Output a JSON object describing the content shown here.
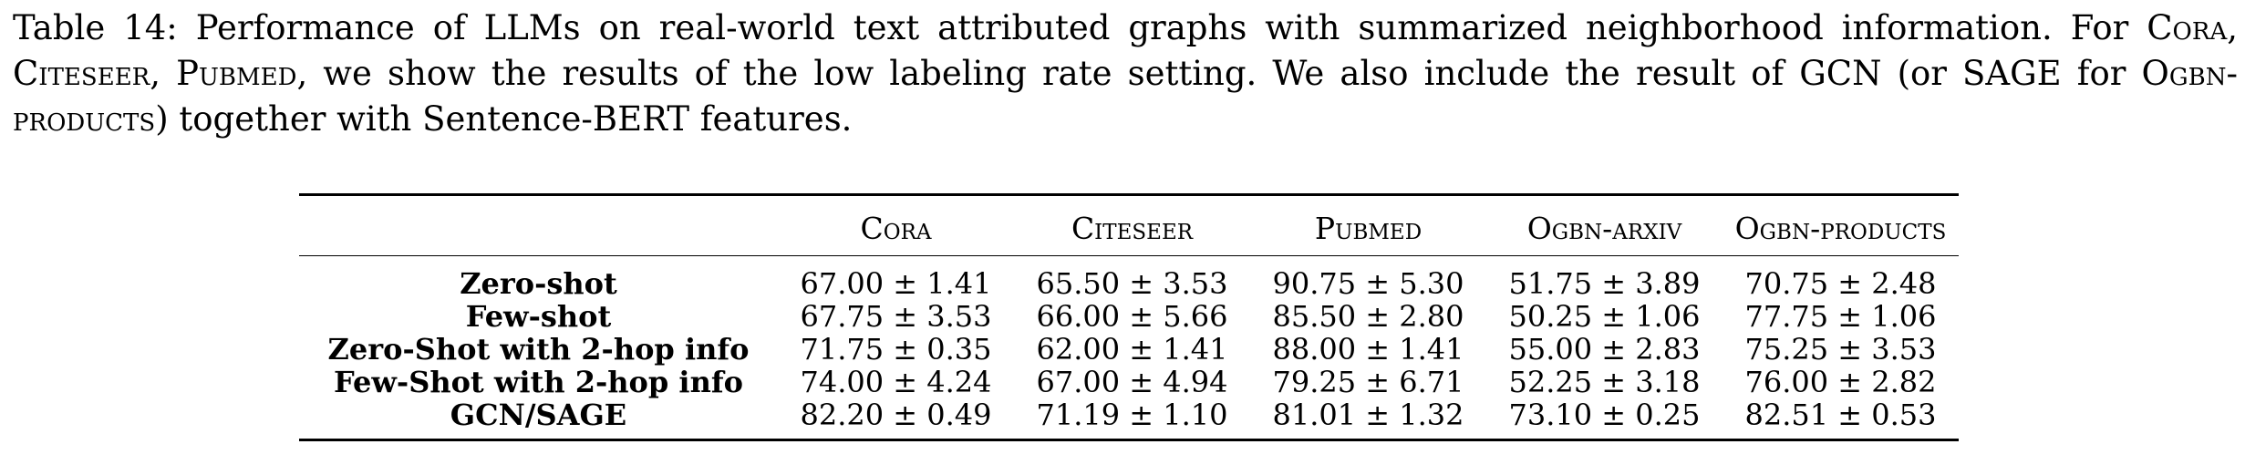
{
  "caption": {
    "prefix": "Table 14: Performance of LLMs on real-world text attributed graphs with summarized neighborhood information. For ",
    "cora": "Cora",
    "sep1": ", ",
    "citeseer": "Citeseer",
    "sep2": ", ",
    "pubmed": "Pubmed",
    "middle": ", we show the results of the low labeling rate setting. We also include the result of GCN (or SAGE for ",
    "products": "Ogbn-products",
    "suffix": ") together with Sentence-BERT features."
  },
  "table": {
    "columns": [
      "Cora",
      "Citeseer",
      "Pubmed",
      "Ogbn-arxiv",
      "Ogbn-products"
    ],
    "rows": [
      {
        "label": "Zero-shot",
        "values": [
          "67.00 ± 1.41",
          "65.50 ± 3.53",
          "90.75 ± 5.30",
          "51.75 ± 3.89",
          "70.75 ± 2.48"
        ]
      },
      {
        "label": "Few-shot",
        "values": [
          "67.75 ± 3.53",
          "66.00 ± 5.66",
          "85.50 ± 2.80",
          "50.25 ± 1.06",
          "77.75 ± 1.06"
        ]
      },
      {
        "label": "Zero-Shot with 2-hop info",
        "values": [
          "71.75 ± 0.35",
          "62.00 ± 1.41",
          "88.00 ± 1.41",
          "55.00 ± 2.83",
          "75.25 ± 3.53"
        ]
      },
      {
        "label": "Few-Shot with 2-hop info",
        "values": [
          "74.00 ± 4.24",
          "67.00 ± 4.94",
          "79.25 ± 6.71",
          "52.25 ± 3.18",
          "76.00 ± 2.82"
        ]
      },
      {
        "label": "GCN/SAGE",
        "values": [
          "82.20 ± 0.49",
          "71.19 ± 1.10",
          "81.01 ± 1.32",
          "73.10 ± 0.25",
          "82.51 ± 0.53"
        ]
      }
    ]
  }
}
